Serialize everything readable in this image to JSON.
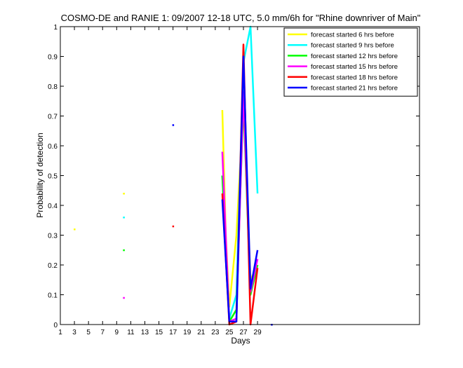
{
  "chart_data": {
    "type": "line",
    "title": "COSMO-DE and RANIE 1: 09/2007 12-18 UTC, 5.0 mm/6h for \"Rhine downriver of Main\"",
    "xlabel": "Days",
    "ylabel": "Probability of detection",
    "xlim": [
      1,
      52
    ],
    "ylim": [
      0,
      1
    ],
    "xticks": [
      "1",
      "3",
      "5",
      "7",
      "9",
      "11",
      "13",
      "15",
      "17",
      "19",
      "21",
      "23",
      "25",
      "27",
      "29"
    ],
    "yticks": [
      "0",
      "0.1",
      "0.2",
      "0.3",
      "0.4",
      "0.5",
      "0.6",
      "0.7",
      "0.8",
      "0.9",
      "1"
    ],
    "legend_position": "top-right",
    "series": [
      {
        "name": "forecast started 6 hrs before",
        "color": "#ffff00",
        "points": [
          [
            3,
            0.32
          ],
          [
            10,
            0.44
          ],
          [
            24,
            0.72
          ],
          [
            24.5,
            0.3
          ],
          [
            25,
            0.06
          ],
          [
            26,
            0.3
          ],
          [
            27,
            0.74
          ],
          [
            28,
            0.15
          ],
          [
            29,
            0.2
          ]
        ]
      },
      {
        "name": "forecast started 9 hrs before",
        "color": "#00ffff",
        "points": [
          [
            10,
            0.36
          ],
          [
            24,
            0.5
          ],
          [
            25,
            0.02
          ],
          [
            26,
            0.1
          ],
          [
            27,
            0.88
          ],
          [
            28,
            1.0
          ],
          [
            29,
            0.44
          ]
        ]
      },
      {
        "name": "forecast started 12 hrs before",
        "color": "#00ff00",
        "points": [
          [
            10,
            0.25
          ],
          [
            24,
            0.5
          ],
          [
            25,
            0.01
          ],
          [
            26,
            0.05
          ],
          [
            27,
            0.75
          ],
          [
            28,
            0.1
          ],
          [
            29,
            0.2
          ]
        ]
      },
      {
        "name": "forecast started 15 hrs before",
        "color": "#ff00ff",
        "points": [
          [
            10,
            0.09
          ],
          [
            24,
            0.58
          ],
          [
            25,
            0.01
          ],
          [
            26,
            0.02
          ],
          [
            27,
            0.78
          ],
          [
            28,
            0.11
          ],
          [
            29,
            0.22
          ]
        ]
      },
      {
        "name": "forecast started 18 hrs before",
        "color": "#ff0000",
        "points": [
          [
            17,
            0.33
          ],
          [
            24,
            0.44
          ],
          [
            25,
            0.0
          ],
          [
            26,
            0.01
          ],
          [
            27,
            0.94
          ],
          [
            28,
            0.0
          ],
          [
            29,
            0.19
          ]
        ]
      },
      {
        "name": "forecast started 21 hrs before",
        "color": "#0000ff",
        "points": [
          [
            17,
            0.67
          ],
          [
            24,
            0.42
          ],
          [
            25,
            0.01
          ],
          [
            26,
            0.01
          ],
          [
            27,
            0.9
          ],
          [
            28,
            0.12
          ],
          [
            29,
            0.25
          ],
          [
            31,
            0.0
          ]
        ]
      }
    ]
  }
}
